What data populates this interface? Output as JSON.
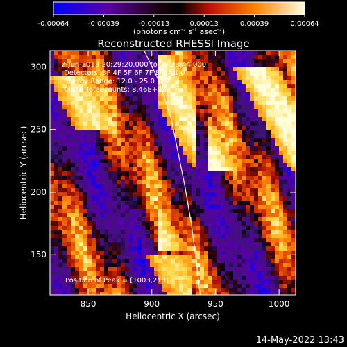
{
  "chart_data": {
    "type": "heatmap",
    "title": "Reconstructed RHESSI Image",
    "xlabel": "Heliocentric X (arcsec)",
    "ylabel": "Heliocentric Y (arcsec)",
    "xlim": [
      820,
      1013
    ],
    "ylim": [
      118,
      313
    ],
    "x_ticks": [
      850,
      900,
      950,
      1000
    ],
    "y_ticks": [
      150,
      200,
      250,
      300
    ],
    "colorbar": {
      "ticks": [
        "-0.00064",
        "-0.00039",
        "-0.00013",
        "0.00013",
        "0.00039",
        "0.00064"
      ],
      "label": "(photons cm",
      "label_sup1": "-2",
      "label_mid": " s",
      "label_sup2": "-1",
      "label_tail": " asec",
      "label_sup3": "-2",
      "label_end": ")",
      "range": [
        -0.00064,
        0.00064
      ]
    },
    "annotations": {
      "time_range": "7-Jun-2013 20:29:20.000 to 20:33:44.000",
      "detectors": "Detectors: 3F 4F 5F 6F 7F 8F, Att 0",
      "energy": "Energy Range: 12.0 - 25.0 keV",
      "clean": "Clean    Total counts: 8.46E+03",
      "peak": "Position of Peak = [1003,213]"
    },
    "peak": [
      1003,
      213
    ],
    "limb_curve": [
      [
        894,
        313
      ],
      [
        905,
        290
      ],
      [
        915,
        260
      ],
      [
        920,
        235
      ],
      [
        926,
        205
      ],
      [
        931,
        175
      ],
      [
        935,
        145
      ],
      [
        938,
        118
      ]
    ],
    "bright_bands": [
      {
        "x": [
          820,
          868
        ],
        "y": [
          250,
          292
        ],
        "level": 0.9
      },
      {
        "x": [
          905,
          935
        ],
        "y": [
          155,
          310
        ],
        "level": 0.95
      },
      {
        "x": [
          945,
          1013
        ],
        "y": [
          215,
          300
        ],
        "level": 1.0
      },
      {
        "x": [
          880,
          930
        ],
        "y": [
          118,
          150
        ],
        "level": 0.85
      }
    ]
  },
  "footer": {
    "timestamp": "14-May-2022 13:43"
  }
}
